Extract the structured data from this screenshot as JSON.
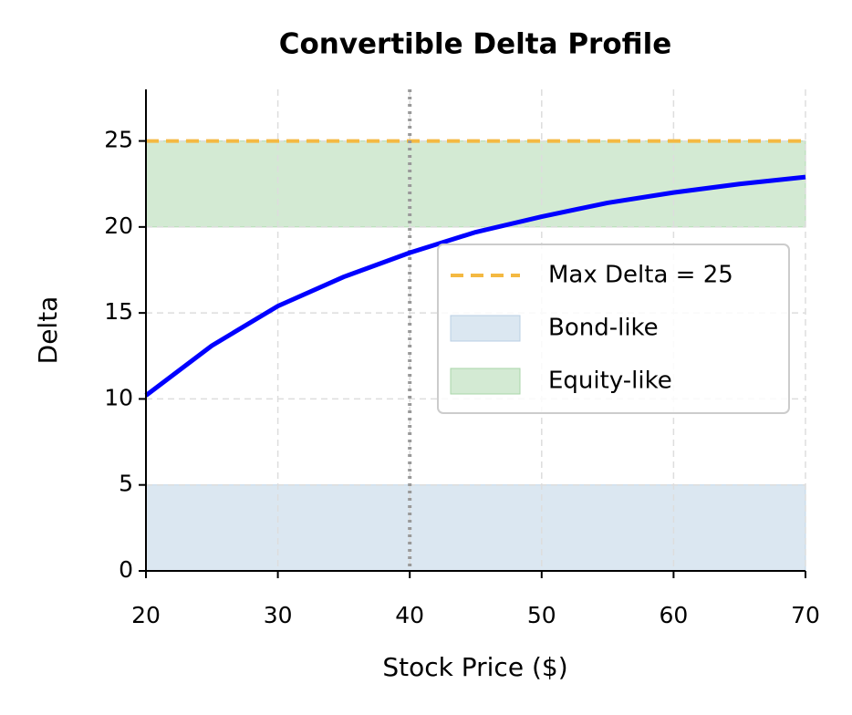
{
  "chart_data": {
    "type": "line",
    "title": "Convertible Delta Profile",
    "xlabel": "Stock Price ($)",
    "ylabel": "Delta",
    "x": [
      20,
      25,
      30,
      35,
      40,
      45,
      50,
      55,
      60,
      65,
      70
    ],
    "values": [
      10.2,
      13.1,
      15.4,
      17.1,
      18.5,
      19.7,
      20.6,
      21.4,
      22.0,
      22.5,
      22.9
    ],
    "color": "#0000ff",
    "hline": {
      "name": "Max Delta = 25",
      "value": 25,
      "color": "#f4b942"
    },
    "vline": {
      "value": 40,
      "color": "#999999"
    },
    "bands": [
      {
        "name": "Bond-like",
        "range": [
          0,
          5
        ],
        "color": "#b8cfe4"
      },
      {
        "name": "Equity-like",
        "range": [
          20,
          25
        ],
        "color": "#a8d5a8"
      }
    ],
    "xlim": [
      20,
      70
    ],
    "xticks": [
      20,
      30,
      40,
      50,
      60,
      70
    ],
    "ylim": [
      0,
      28
    ],
    "yticks": [
      0,
      5,
      10,
      15,
      20,
      25
    ],
    "grid": true,
    "legend": "center right"
  }
}
